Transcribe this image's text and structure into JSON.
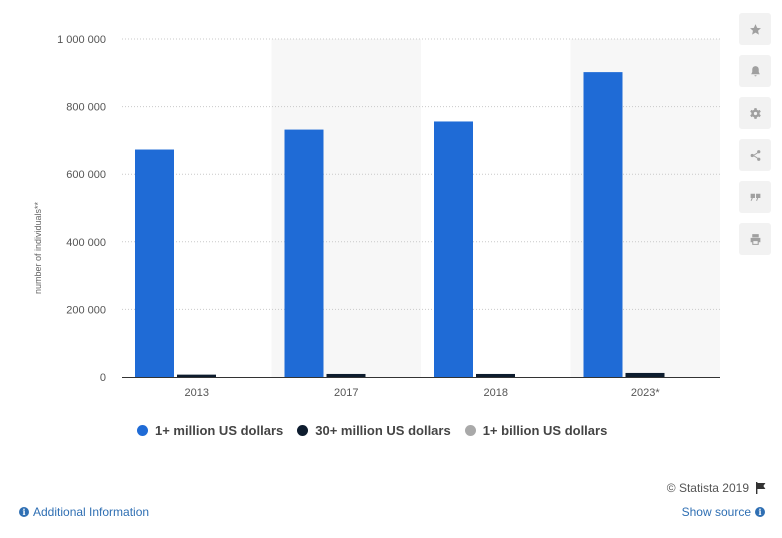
{
  "chart_data": {
    "type": "bar",
    "categories": [
      "2013",
      "2017",
      "2018",
      "2023*"
    ],
    "series": [
      {
        "name": "1+ million US dollars",
        "values": [
          673000,
          732000,
          756000,
          902000
        ],
        "color": "#1f6bd6"
      },
      {
        "name": "30+ million US dollars",
        "values": [
          7000,
          9000,
          9000,
          12000
        ],
        "color": "#0d1c2e"
      },
      {
        "name": "1+ billion US dollars",
        "values": [
          0,
          0,
          0,
          0
        ],
        "color": "#a9a9a9"
      }
    ],
    "ylabel": "number of individuals**",
    "ylim": [
      0,
      1000000
    ],
    "yticks": [
      "0",
      "200 000",
      "400 000",
      "600 000",
      "800 000",
      "1 000 000"
    ],
    "grid": true,
    "legend_position": "bottom-left"
  },
  "toolbar": {
    "icons": [
      "star-icon",
      "bell-icon",
      "gear-icon",
      "share-icon",
      "quote-icon",
      "print-icon"
    ]
  },
  "footer": {
    "credit": "© Statista 2019",
    "additional_info": "Additional Information",
    "show_source": "Show source"
  }
}
